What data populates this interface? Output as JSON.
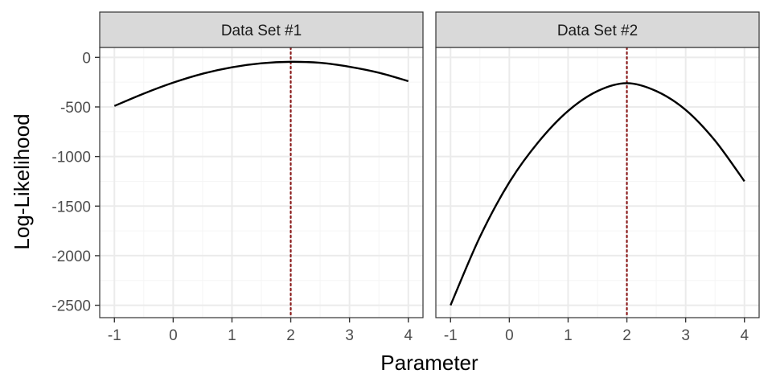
{
  "chart_data": {
    "type": "line",
    "xlabel": "Parameter",
    "ylabel": "Log-Likelihood",
    "xlim": [
      -1.25,
      4.25
    ],
    "ylim": [
      -2625,
      100
    ],
    "x_ticks": [
      -1,
      0,
      1,
      2,
      3,
      4
    ],
    "y_ticks": [
      0,
      -500,
      -1000,
      -1500,
      -2000,
      -2500
    ],
    "grid": true,
    "facets": [
      {
        "label": "Data Set #1",
        "x": [
          -1,
          -0.5,
          0,
          0.5,
          1,
          1.5,
          2,
          2.5,
          3,
          3.5,
          4
        ],
        "values": [
          -490,
          -365,
          -255,
          -165,
          -100,
          -60,
          -45,
          -55,
          -95,
          -155,
          -240
        ],
        "reference_x": 2
      },
      {
        "label": "Data Set #2",
        "x": [
          -1,
          -0.5,
          0,
          0.5,
          1,
          1.5,
          2,
          2.5,
          3,
          3.5,
          4
        ],
        "values": [
          -2500,
          -1810,
          -1260,
          -850,
          -540,
          -340,
          -260,
          -340,
          -530,
          -840,
          -1250
        ],
        "reference_x": 2
      }
    ]
  },
  "colors": {
    "line": "#000000",
    "reference_line": "#8b1a1a",
    "grid_major": "#ebebeb",
    "grid_minor": "#f5f5f5",
    "strip_fill": "#d9d9d9",
    "panel_border": "#333333"
  }
}
